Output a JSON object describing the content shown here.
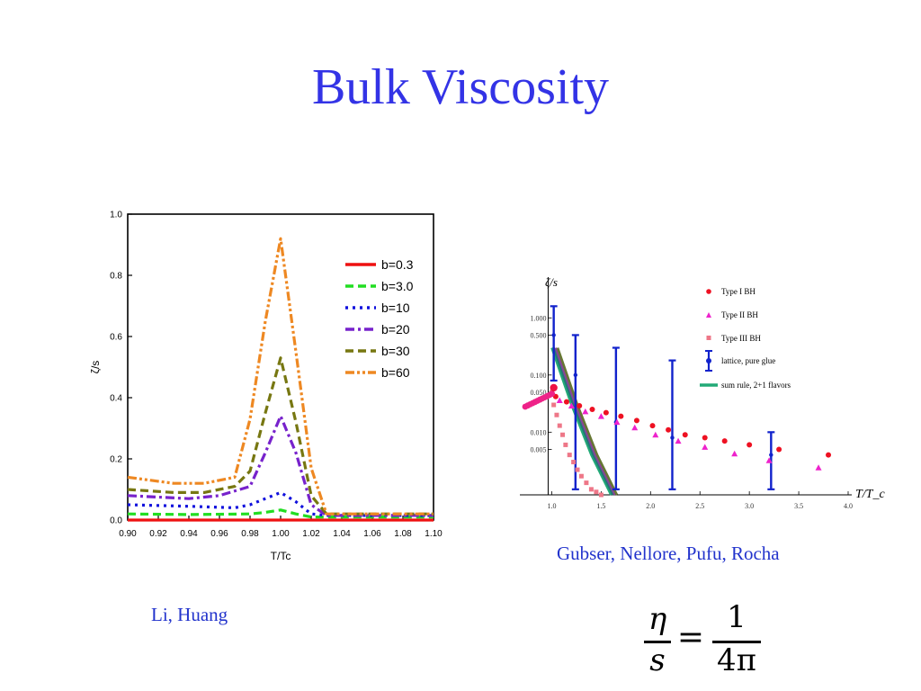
{
  "slide": {
    "title": "Bulk Viscosity",
    "caption_left": "Li, Huang",
    "caption_right": "Gubser, Nellore, Pufu, Rocha",
    "formula": {
      "lhs_num": "η",
      "lhs_den": "s",
      "eq": "=",
      "rhs_num": "1",
      "rhs_den": "4π"
    }
  },
  "chart_data": [
    {
      "type": "line",
      "xlabel": "T/Tc",
      "ylabel": "ζ/s",
      "xlim": [
        0.9,
        1.1
      ],
      "ylim": [
        0.0,
        1.0
      ],
      "x_ticks": [
        "0.90",
        "0.92",
        "0.94",
        "0.96",
        "0.98",
        "1.00",
        "1.02",
        "1.04",
        "1.06",
        "1.08",
        "1.10"
      ],
      "y_ticks": [
        "0.0",
        "0.2",
        "0.4",
        "0.6",
        "0.8",
        "1.0"
      ],
      "legend_position": "top-right",
      "grid": false,
      "series": [
        {
          "name": "b=0.3",
          "color": "#ee1111",
          "dash": "solid",
          "x": [
            0.9,
            0.94,
            0.98,
            1.0,
            1.02,
            1.06,
            1.1
          ],
          "y": [
            0.0,
            0.0,
            0.0,
            0.0,
            0.0,
            0.0,
            0.0
          ]
        },
        {
          "name": "b=3.0",
          "color": "#22dd22",
          "dash": "dash",
          "x": [
            0.9,
            0.94,
            0.98,
            0.99,
            1.0,
            1.01,
            1.02,
            1.03,
            1.06,
            1.1
          ],
          "y": [
            0.02,
            0.018,
            0.02,
            0.025,
            0.033,
            0.02,
            0.01,
            0.01,
            0.01,
            0.01
          ]
        },
        {
          "name": "b=10",
          "color": "#1111dd",
          "dash": "dot",
          "x": [
            0.9,
            0.94,
            0.97,
            0.98,
            0.99,
            1.0,
            1.01,
            1.02,
            1.03,
            1.06,
            1.1
          ],
          "y": [
            0.05,
            0.045,
            0.04,
            0.05,
            0.07,
            0.09,
            0.06,
            0.02,
            0.015,
            0.015,
            0.015
          ]
        },
        {
          "name": "b=20",
          "color": "#7722cc",
          "dash": "dashdot",
          "x": [
            0.9,
            0.94,
            0.96,
            0.98,
            0.99,
            1.0,
            1.01,
            1.02,
            1.03,
            1.06,
            1.1
          ],
          "y": [
            0.08,
            0.07,
            0.08,
            0.11,
            0.22,
            0.34,
            0.22,
            0.05,
            0.015,
            0.015,
            0.015
          ]
        },
        {
          "name": "b=30",
          "color": "#777711",
          "dash": "dash",
          "x": [
            0.9,
            0.93,
            0.95,
            0.97,
            0.98,
            0.99,
            1.0,
            1.01,
            1.02,
            1.03,
            1.06,
            1.1
          ],
          "y": [
            0.1,
            0.09,
            0.09,
            0.11,
            0.16,
            0.35,
            0.53,
            0.32,
            0.08,
            0.02,
            0.02,
            0.02
          ]
        },
        {
          "name": "b=60",
          "color": "#ee8822",
          "dash": "dashdotdot",
          "x": [
            0.9,
            0.93,
            0.95,
            0.97,
            0.98,
            0.99,
            1.0,
            1.01,
            1.02,
            1.03,
            1.06,
            1.1
          ],
          "y": [
            0.14,
            0.12,
            0.12,
            0.14,
            0.33,
            0.65,
            0.92,
            0.55,
            0.17,
            0.02,
            0.02,
            0.02
          ]
        }
      ]
    },
    {
      "type": "scatter",
      "xlabel": "T/T_c",
      "ylabel": "ζ/s",
      "xlim": [
        0.75,
        4.0
      ],
      "ylim_log": [
        0.0008,
        3.0
      ],
      "x_ticks": [
        "1.0",
        "1.5",
        "2.0",
        "2.5",
        "3.0",
        "3.5",
        "4.0"
      ],
      "y_ticks": [
        "1.000",
        "0.500",
        "0.100",
        "0.050",
        "0.010",
        "0.005"
      ],
      "legend_position": "top-right",
      "series": [
        {
          "name": "Type I BH",
          "marker": "circle",
          "color": "#ee1122",
          "x": [
            1.04,
            1.15,
            1.28,
            1.41,
            1.55,
            1.7,
            1.86,
            2.02,
            2.18,
            2.35,
            2.55,
            2.75,
            3.0,
            3.3,
            3.8
          ],
          "y": [
            0.042,
            0.034,
            0.029,
            0.025,
            0.022,
            0.019,
            0.016,
            0.013,
            0.011,
            0.009,
            0.008,
            0.007,
            0.006,
            0.005,
            0.004
          ]
        },
        {
          "name": "Type II BH",
          "marker": "triangle",
          "color": "#ee22cc",
          "x": [
            1.08,
            1.2,
            1.34,
            1.5,
            1.66,
            1.84,
            2.05,
            2.28,
            2.55,
            2.85,
            3.2,
            3.7
          ],
          "y": [
            0.036,
            0.029,
            0.023,
            0.019,
            0.015,
            0.012,
            0.009,
            0.007,
            0.0055,
            0.0042,
            0.0032,
            0.0024
          ]
        },
        {
          "name": "Type III BH",
          "marker": "square",
          "color": "#ee7788",
          "x": [
            1.0,
            1.02,
            1.05,
            1.08,
            1.11,
            1.14,
            1.18,
            1.22,
            1.26,
            1.3,
            1.35,
            1.4,
            1.45,
            1.5
          ],
          "y": [
            0.05,
            0.03,
            0.02,
            0.013,
            0.009,
            0.006,
            0.004,
            0.003,
            0.0022,
            0.0017,
            0.0013,
            0.001,
            0.0009,
            0.0008
          ]
        },
        {
          "name": "lattice, pure glue",
          "marker": "errorbar",
          "color": "#1122cc",
          "x": [
            1.02,
            1.24,
            1.65,
            2.22,
            3.22
          ],
          "y": [
            0.5,
            0.1,
            0.015,
            0.008,
            0.004
          ],
          "err_low": [
            0.08,
            0.001,
            0.001,
            0.001,
            0.001
          ],
          "err_high": [
            1.6,
            0.5,
            0.3,
            0.18,
            0.01
          ]
        },
        {
          "name": "sum rule, 2+1 flavors",
          "marker": "line",
          "color": "#22aa77",
          "x": [
            1.0,
            1.2,
            1.4,
            1.6
          ],
          "y": [
            0.3,
            0.03,
            0.004,
            0.0008
          ]
        }
      ]
    }
  ]
}
